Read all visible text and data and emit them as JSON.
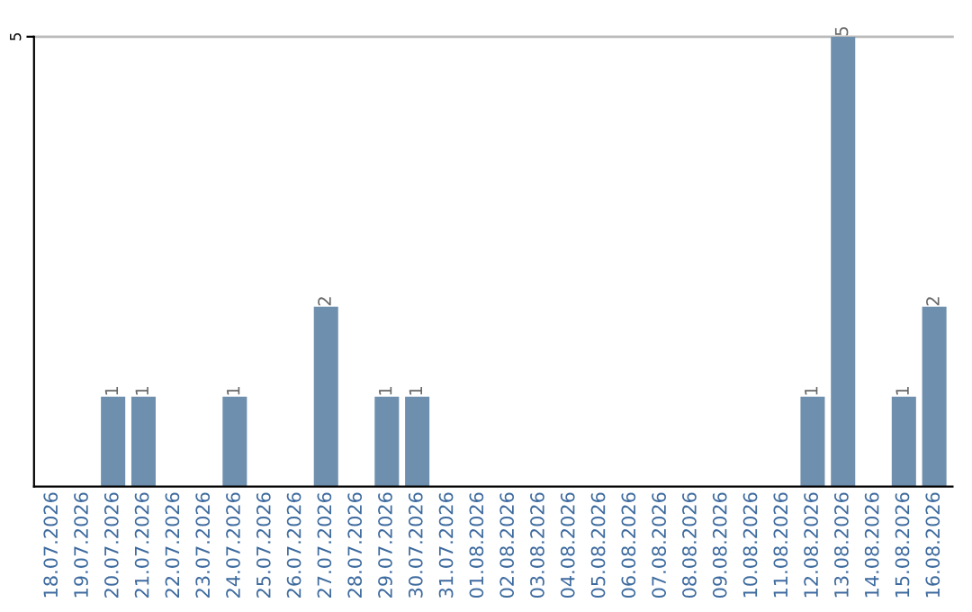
{
  "chart_data": {
    "type": "bar",
    "categories": [
      "18.07.2026",
      "19.07.2026",
      "20.07.2026",
      "21.07.2026",
      "22.07.2026",
      "23.07.2026",
      "24.07.2026",
      "25.07.2026",
      "26.07.2026",
      "27.07.2026",
      "28.07.2026",
      "29.07.2026",
      "30.07.2026",
      "31.07.2026",
      "01.08.2026",
      "02.08.2026",
      "03.08.2026",
      "04.08.2026",
      "05.08.2026",
      "06.08.2026",
      "07.08.2026",
      "08.08.2026",
      "09.08.2026",
      "10.08.2026",
      "11.08.2026",
      "12.08.2026",
      "13.08.2026",
      "14.08.2026",
      "15.08.2026",
      "16.08.2026"
    ],
    "values": [
      0,
      0,
      1,
      1,
      0,
      0,
      1,
      0,
      0,
      2,
      0,
      1,
      1,
      0,
      0,
      0,
      0,
      0,
      0,
      0,
      0,
      0,
      0,
      0,
      0,
      1,
      5,
      0,
      1,
      2
    ],
    "value_labels": [
      null,
      null,
      "1",
      "1",
      null,
      null,
      "1",
      null,
      null,
      "2",
      null,
      "1",
      "1",
      null,
      null,
      null,
      null,
      null,
      null,
      null,
      null,
      null,
      null,
      null,
      null,
      "1",
      "5",
      null,
      "1",
      "2"
    ],
    "color": "#6f8fae",
    "ylim": [
      0,
      5
    ],
    "yticks": [
      5
    ],
    "ref_lines": [
      {
        "axis": "y",
        "value": 5,
        "color": "#bbbbbb"
      }
    ]
  }
}
